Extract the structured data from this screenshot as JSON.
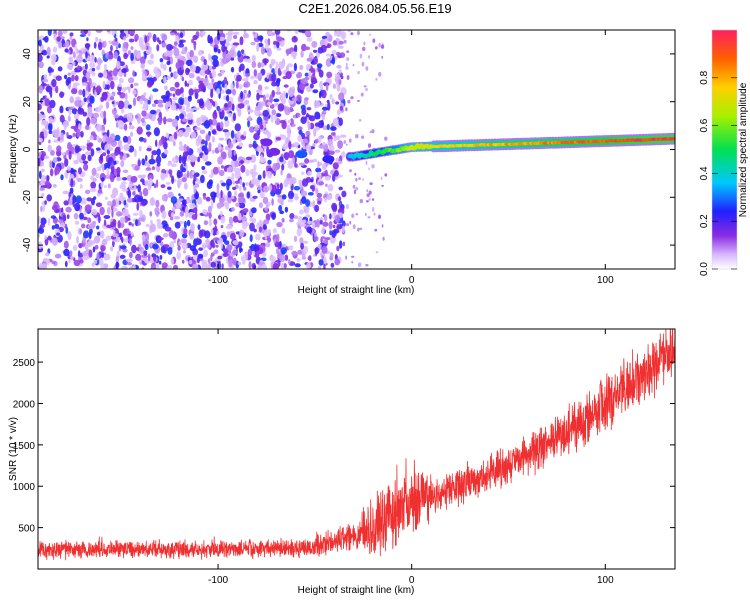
{
  "title": "C2E1.2026.084.05.56.E19",
  "colors": {
    "snr_line": "#f03030",
    "spectro_background": "#ffffff",
    "frame": "#000000"
  },
  "chart_data": [
    {
      "type": "heatmap",
      "title": "C2E1.2026.084.05.56.E19",
      "xlabel": "Height of straight line (km)",
      "ylabel": "Frequency (Hz)",
      "xlim": [
        -193,
        136
      ],
      "ylim": [
        -50,
        50
      ],
      "xticks": [
        -100,
        0,
        100
      ],
      "xtick_labels": [
        "-100",
        "0",
        "100"
      ],
      "yticks": [
        -40,
        -20,
        0,
        20,
        40
      ],
      "ytick_labels": [
        "-40",
        "-20",
        "0",
        "20",
        "40"
      ],
      "colormap": "rainbow (white at 0, violet, blue, cyan, green, yellow, orange, red at 1)",
      "colorbar": {
        "label": "Normalized spectral amplitude",
        "range": [
          0,
          1
        ],
        "ticks": [
          0.0,
          0.2,
          0.4,
          0.6,
          0.8
        ],
        "tick_labels": [
          "0.0",
          "0.2",
          "0.4",
          "0.6",
          "0.8"
        ]
      },
      "regions": [
        {
          "x_range": [
            -193,
            -35
          ],
          "description_value": "broadband noise",
          "amplitude": 0.1
        },
        {
          "x_range": [
            -35,
            0
          ],
          "center_frequency_hz": 0,
          "amplitude": 0.35
        },
        {
          "x_range": [
            0,
            136
          ],
          "center_frequency_hz": 3,
          "amplitude": 0.9
        }
      ]
    },
    {
      "type": "line",
      "xlabel": "Height of straight line (km)",
      "ylabel": "SNR (10 * v/v)",
      "xlim": [
        -193,
        136
      ],
      "ylim": [
        0,
        2900
      ],
      "xticks": [
        -100,
        0,
        100
      ],
      "xtick_labels": [
        "-100",
        "0",
        "100"
      ],
      "yticks": [
        500,
        1000,
        1500,
        2000,
        2500
      ],
      "ytick_labels": [
        "500",
        "1000",
        "1500",
        "2000",
        "2500"
      ],
      "trend": [
        {
          "x": -193,
          "y": 230
        },
        {
          "x": -100,
          "y": 240
        },
        {
          "x": -50,
          "y": 260
        },
        {
          "x": -30,
          "y": 400
        },
        {
          "x": -10,
          "y": 650
        },
        {
          "x": 0,
          "y": 800
        },
        {
          "x": 25,
          "y": 1000
        },
        {
          "x": 50,
          "y": 1250
        },
        {
          "x": 75,
          "y": 1550
        },
        {
          "x": 100,
          "y": 2000
        },
        {
          "x": 120,
          "y": 2400
        },
        {
          "x": 136,
          "y": 2650
        }
      ]
    }
  ]
}
